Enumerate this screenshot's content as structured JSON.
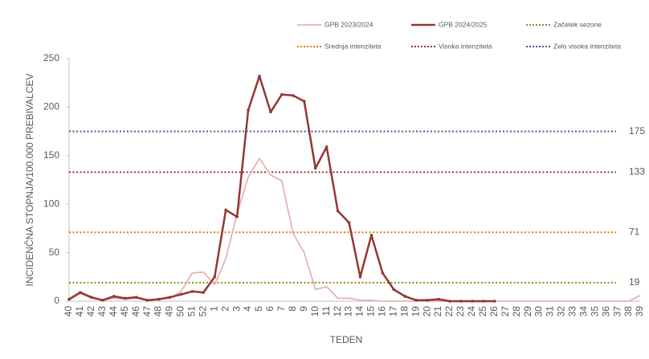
{
  "chart_data": {
    "type": "line",
    "xlabel": "TEDEN",
    "ylabel": "INCIDENČNA  STOPNJA/100.000  PREBIVALCEV",
    "categories": [
      "40",
      "41",
      "42",
      "43",
      "44",
      "45",
      "46",
      "47",
      "48",
      "49",
      "50",
      "51",
      "52",
      "1",
      "2",
      "3",
      "4",
      "5",
      "6",
      "7",
      "8",
      "9",
      "10",
      "11",
      "12",
      "13",
      "14",
      "15",
      "16",
      "17",
      "18",
      "19",
      "20",
      "21",
      "22",
      "23",
      "24",
      "25",
      "26",
      "27",
      "28",
      "29",
      "30",
      "31",
      "32",
      "33",
      "34",
      "35",
      "36",
      "37",
      "38",
      "39"
    ],
    "series": [
      {
        "name": "GPB 2023/2024",
        "color": "#e6b3b3",
        "markers": false,
        "values": [
          1,
          8,
          3,
          1,
          3,
          2,
          3,
          1,
          2,
          3,
          10,
          29,
          30,
          17,
          44,
          90,
          128,
          147,
          130,
          124,
          70,
          50,
          12,
          15,
          3,
          3,
          1,
          1,
          0,
          0,
          0,
          0,
          0,
          0,
          0,
          0,
          0,
          0,
          0,
          0,
          0,
          0,
          0,
          0,
          0,
          0,
          0,
          0,
          0,
          0,
          0,
          6
        ]
      },
      {
        "name": "GPB 2024/2025",
        "color": "#943634",
        "markers": true,
        "values": [
          2,
          9,
          4,
          1,
          5,
          3,
          4,
          1,
          2,
          4,
          7,
          10,
          9,
          25,
          94,
          87,
          197,
          232,
          195,
          213,
          212,
          206,
          137,
          159,
          93,
          81,
          25,
          68,
          29,
          12,
          5,
          1,
          1,
          2,
          0,
          0,
          0,
          0,
          0,
          null,
          null,
          null,
          null,
          null,
          null,
          null,
          null,
          null,
          null,
          null,
          null,
          null
        ]
      }
    ],
    "thresholds": [
      {
        "name": "Začetek sezone",
        "value": 19,
        "color": "#8f8f1f"
      },
      {
        "name": "Srednja intenziteta",
        "value": 71,
        "color": "#e07b1a"
      },
      {
        "name": "Visoka intenziteta",
        "value": 133,
        "color": "#943634"
      },
      {
        "name": "Zelo visoka intenziteta",
        "value": 175,
        "color": "#5b4f8c"
      }
    ],
    "ylim": [
      0,
      250
    ],
    "yticks": [
      0,
      50,
      100,
      150,
      200,
      250
    ]
  }
}
